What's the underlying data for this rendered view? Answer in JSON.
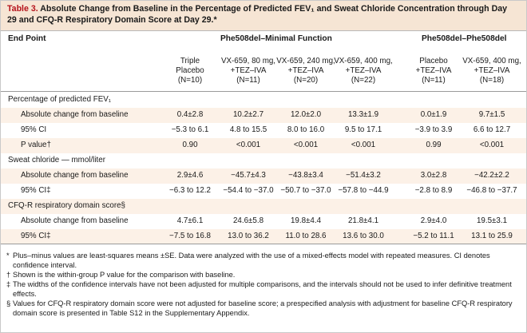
{
  "title": {
    "label": "Table 3.",
    "text": "Absolute Change from Baseline in the Percentage of Predicted FEV₁ and Sweat Chloride Concentration through Day 29 and CFQ-R Respiratory Domain Score at Day 29.*"
  },
  "header": {
    "endpoint": "End Point",
    "group1": "Phe508del–Minimal Function",
    "group2": "Phe508del–Phe508del"
  },
  "columns": [
    {
      "line1": "Triple",
      "line2": "Placebo",
      "line3": "(N=10)"
    },
    {
      "line1": "VX-659, 80 mg,",
      "line2": "+TEZ–IVA",
      "line3": "(N=11)"
    },
    {
      "line1": "VX-659, 240 mg,",
      "line2": "+TEZ–IVA",
      "line3": "(N=20)"
    },
    {
      "line1": "VX-659, 400 mg,",
      "line2": "+TEZ–IVA",
      "line3": "(N=22)"
    },
    {
      "line1": "Placebo",
      "line2": "+TEZ–IVA",
      "line3": "(N=11)"
    },
    {
      "line1": "VX-659, 400 mg,",
      "line2": "+TEZ–IVA",
      "line3": "(N=18)"
    }
  ],
  "sections": [
    {
      "title": "Percentage of predicted FEV₁",
      "rows": [
        {
          "label": "Absolute change from baseline",
          "values": [
            "0.4±2.8",
            "10.2±2.7",
            "12.0±2.0",
            "13.3±1.9",
            "0.0±1.9",
            "9.7±1.5"
          ]
        },
        {
          "label": "95% CI",
          "values": [
            "−5.3 to 6.1",
            "4.8 to 15.5",
            "8.0 to 16.0",
            "9.5 to 17.1",
            "−3.9 to 3.9",
            "6.6 to 12.7"
          ]
        },
        {
          "label": "P value†",
          "values": [
            "0.90",
            "<0.001",
            "<0.001",
            "<0.001",
            "0.99",
            "<0.001"
          ]
        }
      ]
    },
    {
      "title": "Sweat chloride — mmol/liter",
      "rows": [
        {
          "label": "Absolute change from baseline",
          "values": [
            "2.9±4.6",
            "−45.7±4.3",
            "−43.8±3.4",
            "−51.4±3.2",
            "3.0±2.8",
            "−42.2±2.2"
          ]
        },
        {
          "label": "95% CI‡",
          "values": [
            "−6.3 to 12.2",
            "−54.4 to −37.0",
            "−50.7 to −37.0",
            "−57.8 to −44.9",
            "−2.8 to 8.9",
            "−46.8 to −37.7"
          ]
        }
      ]
    },
    {
      "title": "CFQ-R respiratory domain score§",
      "rows": [
        {
          "label": "Absolute change from baseline",
          "values": [
            "4.7±6.1",
            "24.6±5.8",
            "19.8±4.4",
            "21.8±4.1",
            "2.9±4.0",
            "19.5±3.1"
          ]
        },
        {
          "label": "95% CI‡",
          "values": [
            "−7.5 to 16.8",
            "13.0 to 36.2",
            "11.0 to 28.6",
            "13.6 to 30.0",
            "−5.2 to 11.1",
            "13.1 to 25.9"
          ]
        }
      ]
    }
  ],
  "footnotes": [
    {
      "symbol": "*",
      "text": "Plus–minus values are least-squares means ±SE. Data were analyzed with the use of a mixed-effects model with repeated measures. CI denotes confidence interval."
    },
    {
      "symbol": "†",
      "text": "Shown is the within-group P value for the comparison with baseline."
    },
    {
      "symbol": "‡",
      "text": "The widths of the confidence intervals have not been adjusted for multiple comparisons, and the intervals should not be used to infer definitive treatment effects."
    },
    {
      "symbol": "§",
      "text": "Values for CFQ-R respiratory domain score were not adjusted for baseline score; a prespecified analysis with adjustment for baseline CFQ-R respiratory domain score is presented in Table S12 in the Supplementary Appendix."
    }
  ],
  "colors": {
    "accent": "#b5121b",
    "title_band": "#f6e5d4",
    "row_shade": "#fcf1e7"
  }
}
